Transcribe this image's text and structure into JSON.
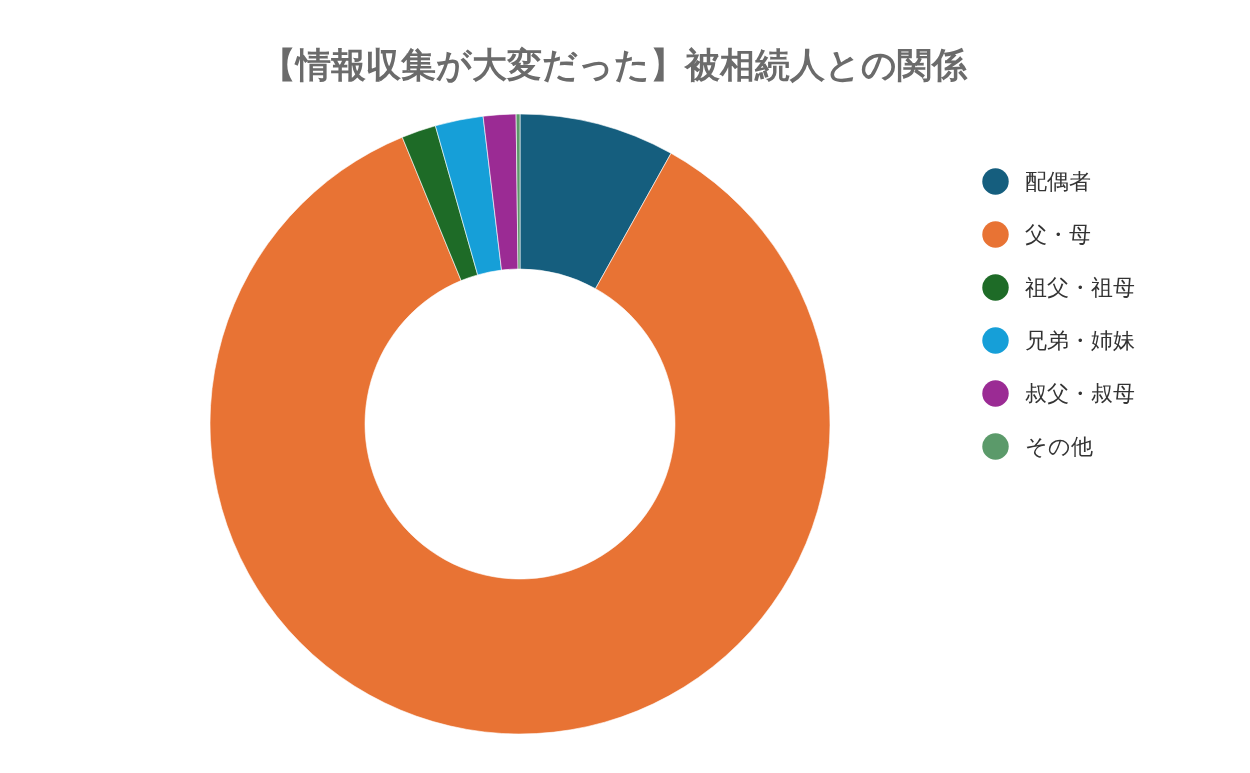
{
  "chart_data": {
    "type": "donut",
    "title": "【情報収集が大変だった】被相続人との関係",
    "categories": [
      "配偶者",
      "父・母",
      "祖父・祖母",
      "兄弟・姉妹",
      "叔父・叔母",
      "その他"
    ],
    "values": [
      8.1,
      85.7,
      1.8,
      2.5,
      1.7,
      0.2
    ],
    "colors": [
      "#155e7e",
      "#e87334",
      "#1e6b27",
      "#169fd8",
      "#9b2b94",
      "#5b9a6a"
    ],
    "legend": "right"
  }
}
